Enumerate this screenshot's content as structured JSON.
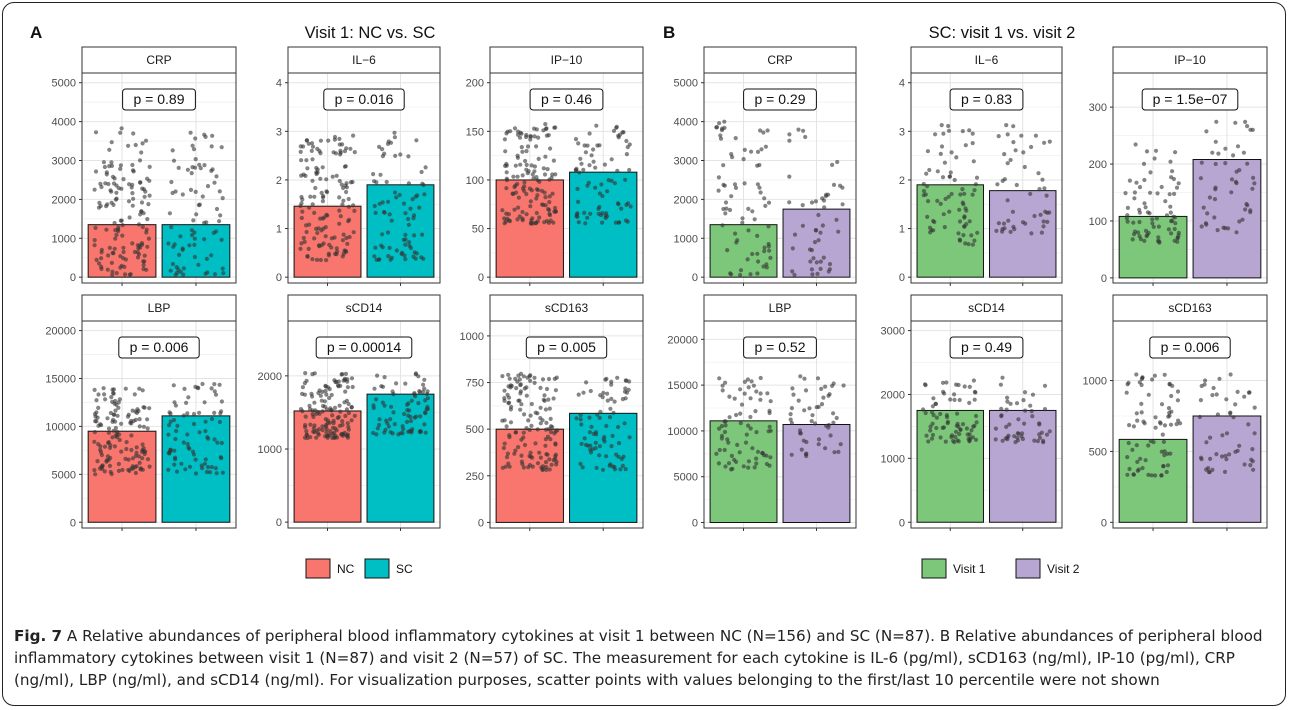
{
  "panels": [
    {
      "letter": "A",
      "title": "Visit 1: NC vs. SC",
      "colors": [
        "#F8766D",
        "#00BFC4"
      ],
      "legend": [
        "NC",
        "SC"
      ],
      "facets": [
        {
          "name": "CRP",
          "ticks": [
            0,
            1000,
            2000,
            3000,
            4000,
            5000
          ],
          "tick_labels": [
            "0",
            "1000",
            "2000",
            "3000",
            "4000",
            "5000"
          ],
          "ylim": [
            -150,
            5250
          ],
          "values": [
            1350,
            1350
          ],
          "pval": "p = 0.89",
          "scatter": [
            [
              50,
              3850
            ],
            [
              50,
              3750
            ]
          ],
          "n": [
            140,
            80
          ]
        },
        {
          "name": "IL−6",
          "ticks": [
            0,
            1,
            2,
            3,
            4
          ],
          "tick_labels": [
            "0",
            "1",
            "2",
            "3",
            "4"
          ],
          "ylim": [
            -0.12,
            4.2
          ],
          "values": [
            1.46,
            1.9
          ],
          "pval": "p = 0.016",
          "scatter": [
            [
              0.35,
              2.95
            ],
            [
              0.35,
              3.05
            ]
          ],
          "n": [
            140,
            80
          ]
        },
        {
          "name": "IP−10",
          "ticks": [
            0,
            50,
            100,
            150,
            200
          ],
          "tick_labels": [
            "0",
            "50",
            "100",
            "150",
            "200"
          ],
          "ylim": [
            -6,
            210
          ],
          "values": [
            100,
            108
          ],
          "pval": "p = 0.46",
          "scatter": [
            [
              55,
              158
            ],
            [
              55,
              158
            ]
          ],
          "n": [
            140,
            80
          ]
        },
        {
          "name": "LBP",
          "ticks": [
            0,
            5000,
            10000,
            15000,
            20000
          ],
          "tick_labels": [
            "0",
            "5000",
            "10000",
            "15000",
            "20000"
          ],
          "ylim": [
            -600,
            21000
          ],
          "values": [
            9500,
            11100
          ],
          "pval": "p = 0.006",
          "scatter": [
            [
              5000,
              14000
            ],
            [
              5000,
              14800
            ]
          ],
          "n": [
            140,
            80
          ]
        },
        {
          "name": "sCD14",
          "ticks": [
            0,
            1000,
            2000
          ],
          "tick_labels": [
            "0",
            "1000",
            "2000"
          ],
          "ylim": [
            -80,
            2750
          ],
          "values": [
            1520,
            1750
          ],
          "pval": "p = 0.00014",
          "scatter": [
            [
              1150,
              2050
            ],
            [
              1200,
              2050
            ]
          ],
          "n": [
            140,
            80
          ]
        },
        {
          "name": "sCD163",
          "ticks": [
            0,
            250,
            500,
            750,
            1000
          ],
          "tick_labels": [
            "0",
            "250",
            "500",
            "750",
            "1000"
          ],
          "ylim": [
            -30,
            1080
          ],
          "values": [
            500,
            585
          ],
          "pval": "p = 0.005",
          "scatter": [
            [
              280,
              800
            ],
            [
              280,
              790
            ]
          ],
          "n": [
            140,
            80
          ]
        }
      ]
    },
    {
      "letter": "B",
      "title": "SC: visit 1 vs. visit 2",
      "colors": [
        "#7CC77A",
        "#B8A6D2"
      ],
      "legend": [
        "Visit 1",
        "Visit 2"
      ],
      "facets": [
        {
          "name": "CRP",
          "ticks": [
            0,
            1000,
            2000,
            3000,
            4000,
            5000
          ],
          "tick_labels": [
            "0",
            "1000",
            "2000",
            "3000",
            "4000",
            "5000"
          ],
          "ylim": [
            -150,
            5250
          ],
          "values": [
            1350,
            1750
          ],
          "pval": "p = 0.29",
          "scatter": [
            [
              50,
              4000
            ],
            [
              50,
              3900
            ]
          ],
          "n": [
            75,
            50
          ]
        },
        {
          "name": "IL−6",
          "ticks": [
            0,
            1,
            2,
            3,
            4
          ],
          "tick_labels": [
            "0",
            "1",
            "2",
            "3",
            "4"
          ],
          "ylim": [
            -0.12,
            4.2
          ],
          "values": [
            1.9,
            1.78
          ],
          "pval": "p = 0.83",
          "scatter": [
            [
              0.65,
              3.2
            ],
            [
              0.9,
              3.2
            ]
          ],
          "n": [
            75,
            50
          ]
        },
        {
          "name": "IP−10",
          "ticks": [
            0,
            100,
            200,
            300
          ],
          "tick_labels": [
            "0",
            "100",
            "200",
            "300"
          ],
          "ylim": [
            -9,
            360
          ],
          "values": [
            108,
            208
          ],
          "pval": "p = 1.5e−07",
          "scatter": [
            [
              60,
              235
            ],
            [
              80,
              285
            ]
          ],
          "n": [
            75,
            50
          ]
        },
        {
          "name": "LBP",
          "ticks": [
            0,
            5000,
            10000,
            15000,
            20000
          ],
          "tick_labels": [
            "0",
            "5000",
            "10000",
            "15000",
            "20000"
          ],
          "ylim": [
            -600,
            22000
          ],
          "values": [
            11100,
            10700
          ],
          "pval": "p = 0.52",
          "scatter": [
            [
              5800,
              15800
            ],
            [
              7200,
              16000
            ]
          ],
          "n": [
            75,
            50
          ]
        },
        {
          "name": "sCD14",
          "ticks": [
            0,
            1000,
            2000,
            3000
          ],
          "tick_labels": [
            "0",
            "1000",
            "2000",
            "3000"
          ],
          "ylim": [
            -90,
            3150
          ],
          "values": [
            1750,
            1750
          ],
          "pval": "p = 0.49",
          "scatter": [
            [
              1250,
              2250
            ],
            [
              1250,
              2300
            ]
          ],
          "n": [
            75,
            50
          ]
        },
        {
          "name": "sCD163",
          "ticks": [
            0,
            500,
            1000
          ],
          "tick_labels": [
            "0",
            "500",
            "1000"
          ],
          "ylim": [
            -40,
            1420
          ],
          "values": [
            585,
            750
          ],
          "pval": "p = 0.006",
          "scatter": [
            [
              330,
              1050
            ],
            [
              350,
              1050
            ]
          ],
          "n": [
            75,
            50
          ]
        }
      ]
    }
  ],
  "caption": {
    "fig_label": "Fig. 7",
    "text": " A Relative abundances of peripheral blood inflammatory cytokines at visit 1 between NC (N=156) and SC (N=87). B Relative abundances of peripheral blood inflammatory cytokines between visit 1 (N=87) and visit 2 (N=57) of SC. The measurement for each cytokine is IL-6 (pg/ml), sCD163 (ng/ml), IP-10 (pg/ml), CRP (ng/ml), LBP (ng/ml), and sCD14 (ng/ml). For visualization purposes, scatter points with values belonging to the first/last 10 percentile were not shown"
  },
  "chart_data": [
    {
      "type": "bar",
      "panel": "A",
      "title": "Visit 1: NC vs. SC",
      "categories": [
        "NC",
        "SC"
      ],
      "facets": [
        {
          "name": "CRP",
          "values": [
            1350,
            1350
          ],
          "ylim": [
            0,
            5000
          ],
          "p": "p = 0.89"
        },
        {
          "name": "IL−6",
          "values": [
            1.46,
            1.9
          ],
          "ylim": [
            0,
            4
          ],
          "p": "p = 0.016"
        },
        {
          "name": "IP−10",
          "values": [
            100,
            108
          ],
          "ylim": [
            0,
            200
          ],
          "p": "p = 0.46"
        },
        {
          "name": "LBP",
          "values": [
            9500,
            11100
          ],
          "ylim": [
            0,
            20000
          ],
          "p": "p = 0.006"
        },
        {
          "name": "sCD14",
          "values": [
            1520,
            1750
          ],
          "ylim": [
            0,
            2000
          ],
          "p": "p = 0.00014"
        },
        {
          "name": "sCD163",
          "values": [
            500,
            585
          ],
          "ylim": [
            0,
            1000
          ],
          "p": "p = 0.005"
        }
      ]
    },
    {
      "type": "bar",
      "panel": "B",
      "title": "SC: visit 1 vs. visit 2",
      "categories": [
        "Visit 1",
        "Visit 2"
      ],
      "facets": [
        {
          "name": "CRP",
          "values": [
            1350,
            1750
          ],
          "ylim": [
            0,
            5000
          ],
          "p": "p = 0.29"
        },
        {
          "name": "IL−6",
          "values": [
            1.9,
            1.78
          ],
          "ylim": [
            0,
            4
          ],
          "p": "p = 0.83"
        },
        {
          "name": "IP−10",
          "values": [
            108,
            208
          ],
          "ylim": [
            0,
            300
          ],
          "p": "p = 1.5e−07"
        },
        {
          "name": "LBP",
          "values": [
            11100,
            10700
          ],
          "ylim": [
            0,
            20000
          ],
          "p": "p = 0.52"
        },
        {
          "name": "sCD14",
          "values": [
            1750,
            1750
          ],
          "ylim": [
            0,
            3000
          ],
          "p": "p = 0.49"
        },
        {
          "name": "sCD163",
          "values": [
            585,
            750
          ],
          "ylim": [
            0,
            1000
          ],
          "p": "p = 0.006"
        }
      ]
    }
  ]
}
